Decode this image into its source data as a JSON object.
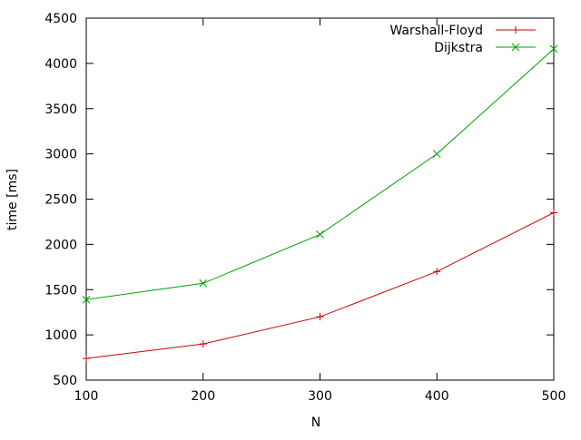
{
  "chart_data": {
    "type": "line",
    "xlabel": "N",
    "ylabel": "time [ms]",
    "xlim": [
      100,
      500
    ],
    "ylim": [
      500,
      4500
    ],
    "xticks": [
      100,
      200,
      300,
      400,
      500
    ],
    "yticks": [
      500,
      1000,
      1500,
      2000,
      2500,
      3000,
      3500,
      4000,
      4500
    ],
    "grid": false,
    "legend_position": "top-right",
    "x": [
      100,
      200,
      300,
      400,
      500
    ],
    "series": [
      {
        "name": "Warshall-Floyd",
        "values": [
          740,
          900,
          1200,
          1700,
          2350
        ],
        "color": "#cc0000",
        "marker": "plus"
      },
      {
        "name": "Dijkstra",
        "values": [
          1390,
          1570,
          2110,
          3000,
          4160
        ],
        "color": "#00a000",
        "marker": "cross"
      }
    ]
  }
}
